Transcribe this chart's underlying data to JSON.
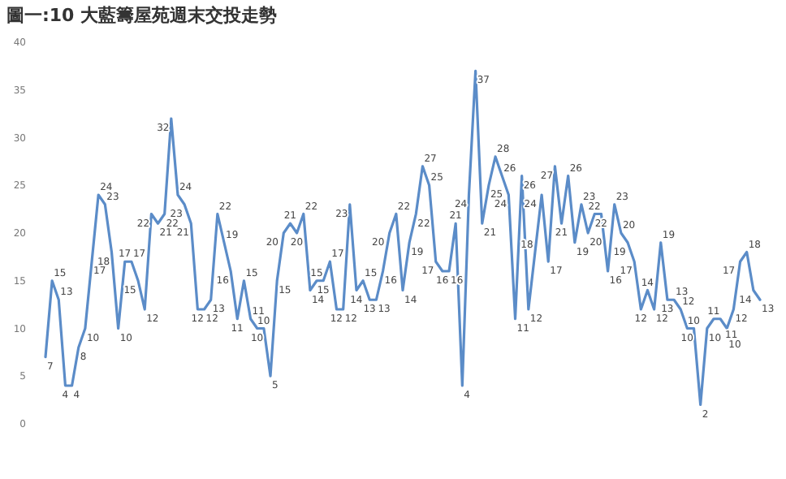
{
  "chart_data": {
    "type": "line",
    "title": "圖一:10 大藍籌屋苑週末交投走勢",
    "categories": [
      null,
      null,
      null,
      null,
      null,
      null,
      null,
      null,
      null,
      null,
      null,
      null,
      null,
      null,
      null,
      null,
      null,
      null,
      null,
      null,
      null,
      null,
      null,
      null,
      null,
      null,
      null,
      null,
      null,
      null,
      null,
      null,
      null,
      null,
      null,
      null,
      null,
      null,
      null,
      null,
      null,
      null,
      null,
      null,
      null,
      null,
      null,
      null,
      null,
      null,
      null,
      null,
      null,
      null,
      null,
      null,
      null,
      null,
      null,
      null,
      null,
      null,
      null,
      null,
      null,
      null,
      null,
      null,
      null,
      null,
      null,
      null,
      null,
      null,
      null,
      null,
      null,
      null,
      null,
      null,
      null,
      null,
      null,
      null,
      null,
      null,
      null,
      null,
      null,
      null,
      null,
      null,
      null,
      null,
      null,
      null,
      null,
      null,
      null,
      null,
      null,
      null,
      null,
      null,
      null,
      null,
      null,
      null,
      null
    ],
    "series": [
      {
        "color": "#5b8cc8",
        "values": [
          7,
          15,
          13,
          4,
          4,
          8,
          10,
          17,
          24,
          23,
          18,
          10,
          17,
          17,
          15,
          12,
          22,
          21,
          22,
          32,
          24,
          23,
          21,
          12,
          12,
          13,
          22,
          19,
          16,
          11,
          15,
          11,
          10,
          10,
          5,
          15,
          20,
          21,
          20,
          22,
          14,
          15,
          15,
          17,
          12,
          12,
          23,
          14,
          15,
          13,
          13,
          16,
          20,
          22,
          14,
          19,
          22,
          27,
          25,
          17,
          16,
          16,
          21,
          4,
          24,
          37,
          21,
          25,
          28,
          26,
          24,
          11,
          26,
          12,
          18,
          24,
          17,
          27,
          21,
          26,
          19,
          23,
          20,
          22,
          22,
          16,
          23,
          20,
          19,
          17,
          12,
          14,
          12,
          19,
          13,
          13,
          12,
          10,
          10,
          2,
          10,
          11,
          11,
          10,
          12,
          17,
          18,
          14,
          13
        ]
      }
    ],
    "ylim": [
      0,
      40
    ],
    "yticks": [
      0,
      5,
      10,
      15,
      20,
      25,
      30,
      35,
      40
    ],
    "grid": false,
    "marker": "none",
    "line_style": "solid",
    "data_labels": true
  }
}
